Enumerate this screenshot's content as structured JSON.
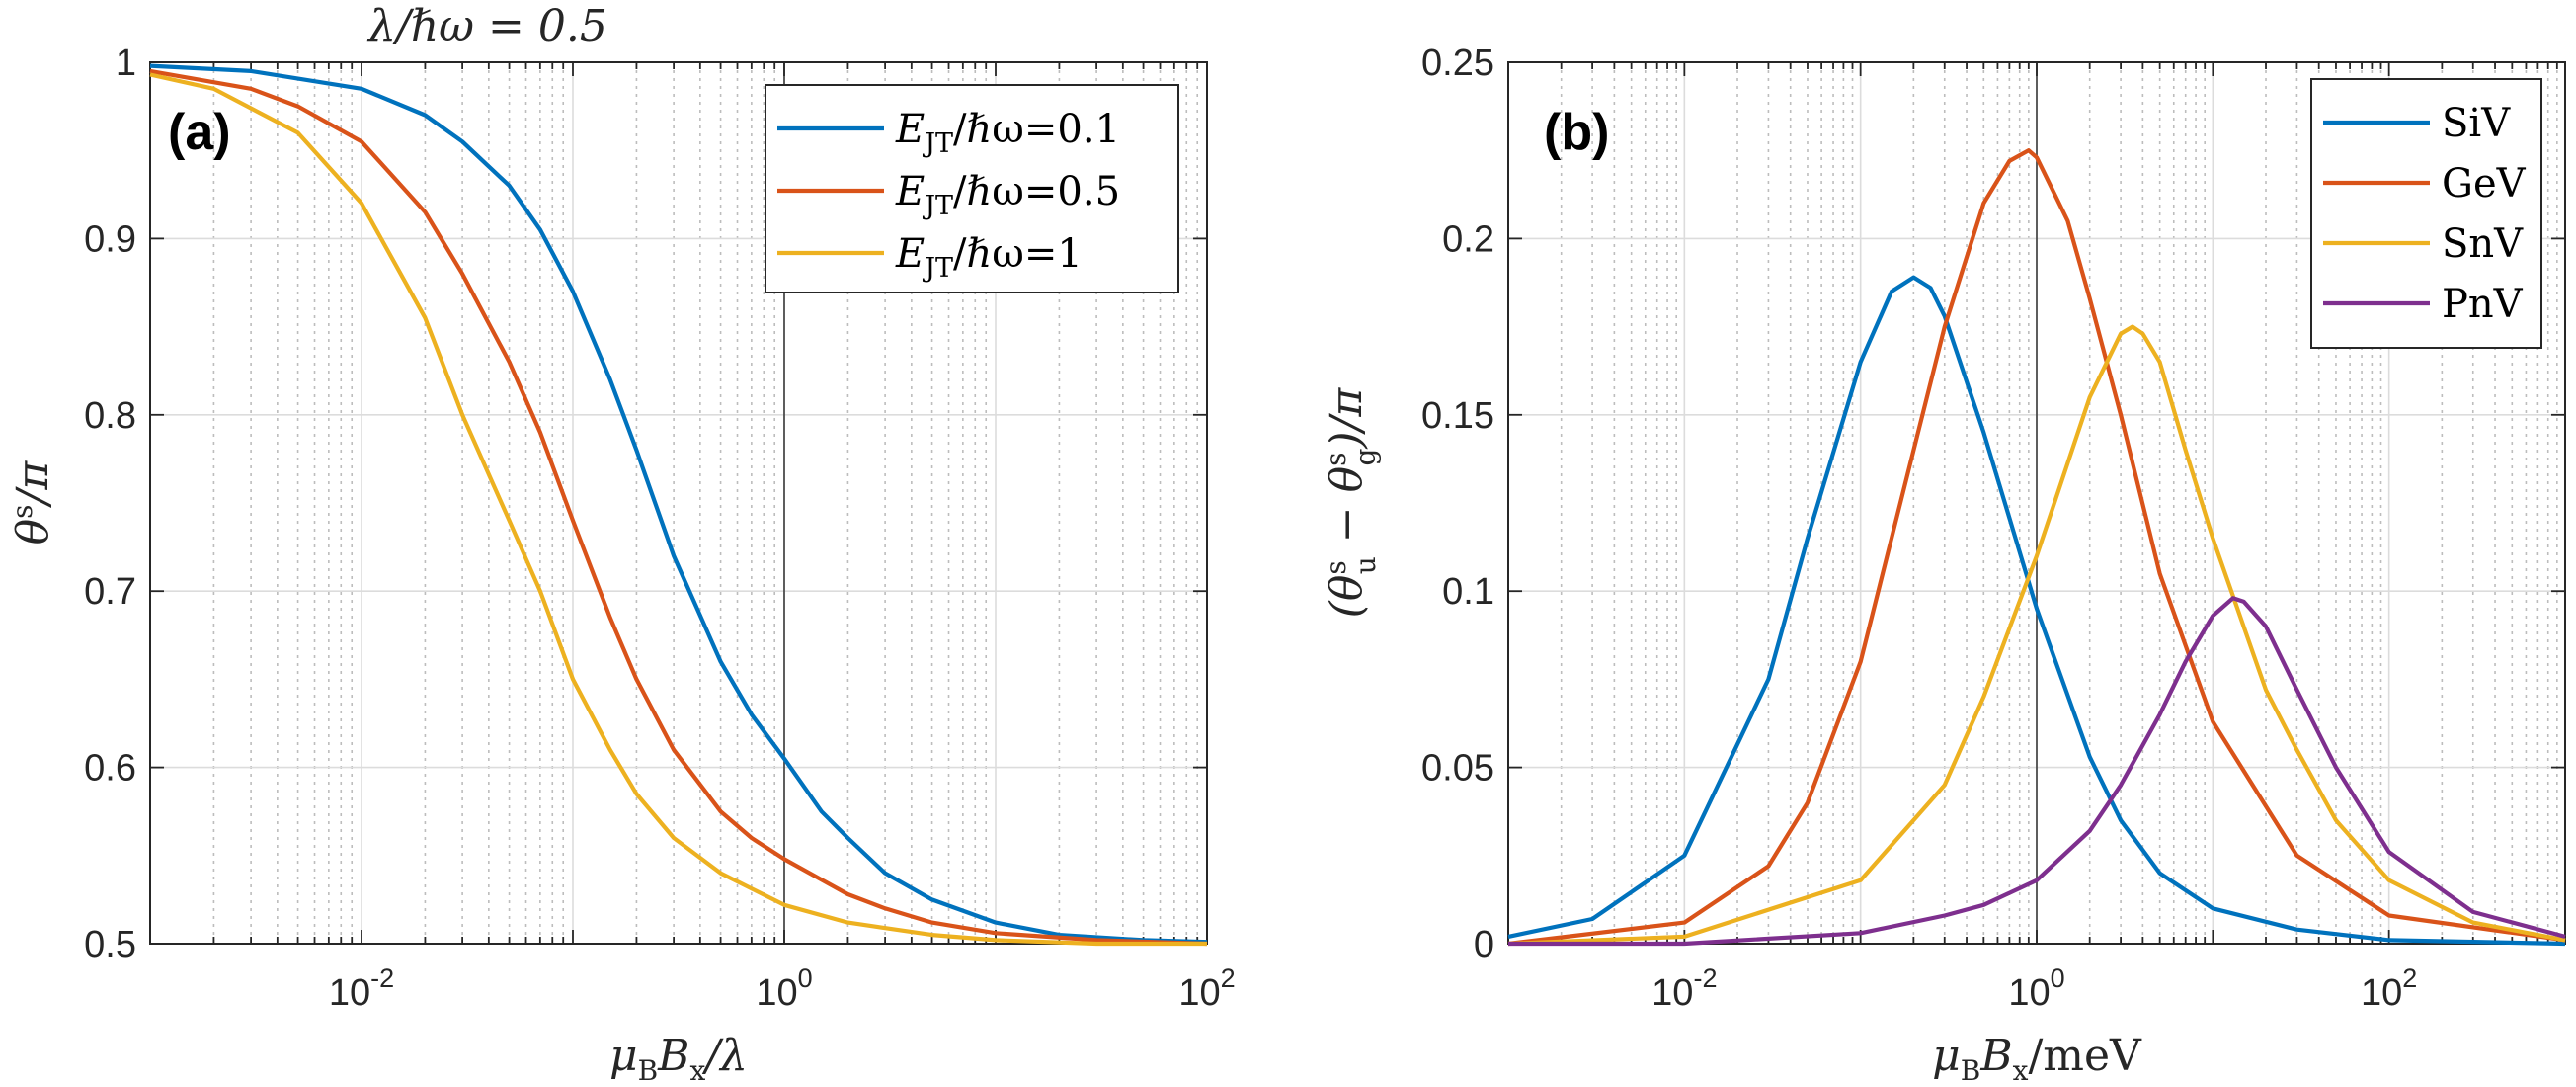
{
  "chart_data": [
    {
      "id": "a",
      "type": "line",
      "title": "λ/ℏω = 0.5",
      "panel_label": "(a)",
      "xlabel": "μ_B B_x / λ",
      "ylabel": "θ^s / π",
      "xscale": "log",
      "xlim": [
        0.001,
        100
      ],
      "ylim": [
        0.5,
        1
      ],
      "xticks": [
        0.01,
        1,
        100
      ],
      "xtick_labels": [
        "10^-2",
        "10^0",
        "10^2"
      ],
      "yticks": [
        0.5,
        0.6,
        0.7,
        0.8,
        0.9,
        1
      ],
      "ytick_labels": [
        "0.5",
        "0.6",
        "0.7",
        "0.8",
        "0.9",
        "1"
      ],
      "vline_x": 1,
      "grid": true,
      "legend_position": "top-right",
      "series": [
        {
          "name": "E_JT/ℏω=0.1",
          "legend_main": "E",
          "legend_sub": "JT",
          "legend_rest": "/ℏω=0.1",
          "color": "#0072BD",
          "x": [
            0.001,
            0.003,
            0.01,
            0.02,
            0.03,
            0.05,
            0.07,
            0.1,
            0.15,
            0.2,
            0.3,
            0.5,
            0.7,
            1,
            1.5,
            2,
            3,
            5,
            10,
            20,
            50,
            100
          ],
          "y": [
            0.998,
            0.995,
            0.985,
            0.97,
            0.955,
            0.93,
            0.905,
            0.87,
            0.82,
            0.78,
            0.72,
            0.66,
            0.63,
            0.605,
            0.575,
            0.56,
            0.54,
            0.525,
            0.512,
            0.505,
            0.502,
            0.501
          ]
        },
        {
          "name": "E_JT/ℏω=0.5",
          "legend_main": "E",
          "legend_sub": "JT",
          "legend_rest": "/ℏω=0.5",
          "color": "#D95319",
          "x": [
            0.001,
            0.003,
            0.005,
            0.01,
            0.02,
            0.03,
            0.05,
            0.07,
            0.1,
            0.15,
            0.2,
            0.3,
            0.5,
            0.7,
            1,
            2,
            3,
            5,
            10,
            30,
            100
          ],
          "y": [
            0.995,
            0.985,
            0.975,
            0.955,
            0.915,
            0.88,
            0.83,
            0.79,
            0.74,
            0.685,
            0.65,
            0.61,
            0.575,
            0.56,
            0.548,
            0.528,
            0.52,
            0.512,
            0.506,
            0.502,
            0.5
          ]
        },
        {
          "name": "E_JT/ℏω=1",
          "legend_main": "E",
          "legend_sub": "JT",
          "legend_rest": "/ℏω=1",
          "color": "#EDB120",
          "x": [
            0.001,
            0.002,
            0.005,
            0.01,
            0.02,
            0.03,
            0.05,
            0.07,
            0.1,
            0.15,
            0.2,
            0.3,
            0.5,
            1,
            2,
            5,
            10,
            30,
            100
          ],
          "y": [
            0.993,
            0.985,
            0.96,
            0.92,
            0.855,
            0.8,
            0.74,
            0.7,
            0.65,
            0.61,
            0.585,
            0.56,
            0.54,
            0.522,
            0.512,
            0.505,
            0.502,
            0.5,
            0.5
          ]
        }
      ]
    },
    {
      "id": "b",
      "type": "line",
      "title": "",
      "panel_label": "(b)",
      "xlabel": "μ_B B_x / meV",
      "ylabel": "(θ_u^s − θ_g^s) / π",
      "xscale": "log",
      "xlim": [
        0.001,
        1000
      ],
      "ylim": [
        0,
        0.25
      ],
      "xticks": [
        0.01,
        1,
        100
      ],
      "xtick_labels": [
        "10^-2",
        "10^0",
        "10^2"
      ],
      "yticks": [
        0,
        0.05,
        0.1,
        0.15,
        0.2,
        0.25
      ],
      "ytick_labels": [
        "0",
        "0.05",
        "0.1",
        "0.15",
        "0.2",
        "0.25"
      ],
      "vline_x": 1,
      "grid": true,
      "legend_position": "top-right",
      "series": [
        {
          "name": "SiV",
          "color": "#0072BD",
          "x": [
            0.001,
            0.003,
            0.01,
            0.03,
            0.05,
            0.1,
            0.15,
            0.2,
            0.25,
            0.3,
            0.5,
            1,
            2,
            3,
            5,
            10,
            30,
            100,
            1000
          ],
          "y": [
            0.002,
            0.007,
            0.025,
            0.075,
            0.115,
            0.165,
            0.185,
            0.189,
            0.186,
            0.178,
            0.145,
            0.095,
            0.053,
            0.035,
            0.02,
            0.01,
            0.004,
            0.001,
            0.0
          ]
        },
        {
          "name": "GeV",
          "color": "#D95319",
          "x": [
            0.001,
            0.01,
            0.03,
            0.05,
            0.1,
            0.2,
            0.3,
            0.5,
            0.7,
            0.9,
            1,
            1.5,
            2,
            3,
            5,
            10,
            30,
            100,
            1000
          ],
          "y": [
            0.0,
            0.006,
            0.022,
            0.04,
            0.08,
            0.14,
            0.175,
            0.21,
            0.222,
            0.225,
            0.223,
            0.205,
            0.183,
            0.15,
            0.105,
            0.063,
            0.025,
            0.008,
            0.001
          ]
        },
        {
          "name": "SnV",
          "color": "#EDB120",
          "x": [
            0.001,
            0.01,
            0.1,
            0.3,
            0.5,
            1,
            2,
            3,
            3.5,
            4,
            5,
            7,
            10,
            20,
            30,
            50,
            100,
            300,
            1000
          ],
          "y": [
            0.0,
            0.002,
            0.018,
            0.045,
            0.07,
            0.11,
            0.155,
            0.173,
            0.175,
            0.173,
            0.165,
            0.14,
            0.115,
            0.072,
            0.055,
            0.035,
            0.018,
            0.006,
            0.001
          ]
        },
        {
          "name": "PnV",
          "color": "#7E2F8E",
          "x": [
            0.001,
            0.01,
            0.1,
            0.3,
            0.5,
            1,
            2,
            3,
            5,
            7,
            10,
            13,
            15,
            20,
            30,
            50,
            100,
            300,
            1000
          ],
          "y": [
            0.0,
            0.0,
            0.003,
            0.008,
            0.011,
            0.018,
            0.032,
            0.045,
            0.065,
            0.08,
            0.093,
            0.098,
            0.097,
            0.09,
            0.072,
            0.05,
            0.026,
            0.009,
            0.002
          ]
        }
      ]
    }
  ]
}
